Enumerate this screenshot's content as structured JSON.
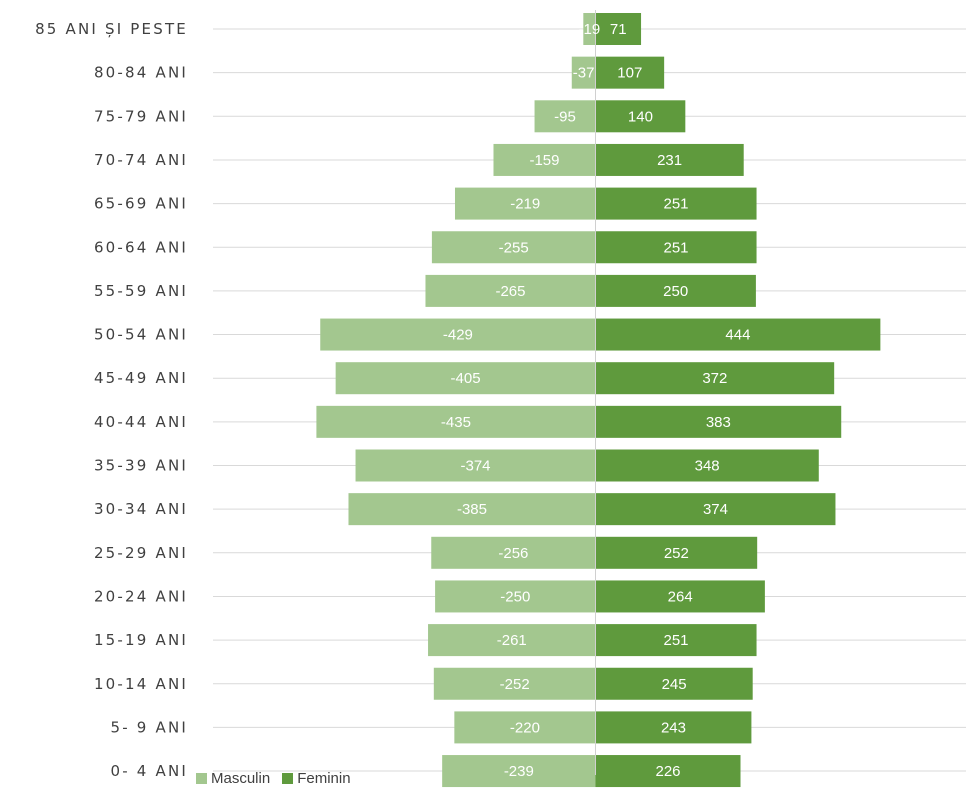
{
  "chart_data": {
    "type": "bar",
    "orientation": "horizontal",
    "stacked": true,
    "categories": [
      "85 ANI ȘI PESTE",
      "80-84 ANI",
      "75-79 ANI",
      "70-74 ANI",
      "65-69 ANI",
      "60-64 ANI",
      "55-59 ANI",
      "50-54 ANI",
      "45-49 ANI",
      "40-44 ANI",
      "35-39 ANI",
      "30-34 ANI",
      "25-29 ANI",
      "20-24 ANI",
      "15-19 ANI",
      "10-14 ANI",
      "5- 9 ANI",
      "0- 4 ANI"
    ],
    "series": [
      {
        "name": "Masculin",
        "color": "#a3c78f",
        "values": [
          -19,
          -37,
          -95,
          -159,
          -219,
          -255,
          -265,
          -429,
          -405,
          -435,
          -374,
          -385,
          -256,
          -250,
          -261,
          -252,
          -220,
          -239
        ]
      },
      {
        "name": "Feminin",
        "color": "#5f9a3d",
        "values": [
          71,
          107,
          140,
          231,
          251,
          251,
          250,
          444,
          372,
          383,
          348,
          374,
          252,
          264,
          251,
          245,
          243,
          226
        ]
      }
    ],
    "grid": true,
    "legend_position": "bottom-left",
    "xlim": [
      -605,
      605
    ]
  }
}
